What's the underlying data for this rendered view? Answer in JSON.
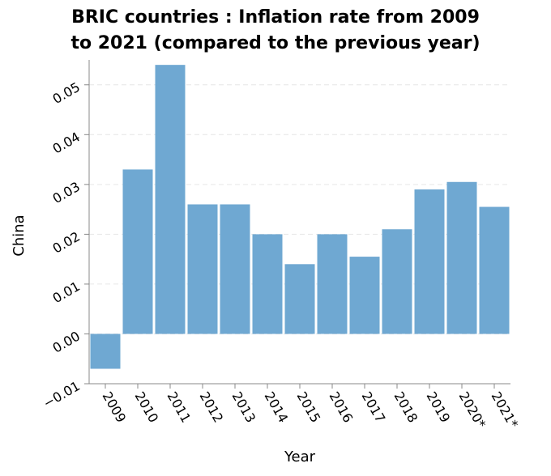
{
  "chart_data": {
    "type": "bar",
    "title_lines": [
      "BRIC countries : Inflation rate from 2009",
      "to 2021 (compared to the previous year)"
    ],
    "xlabel": "Year",
    "ylabel": "China",
    "categories": [
      "2009",
      "2010",
      "2011",
      "2012",
      "2013",
      "2014",
      "2015",
      "2016",
      "2017",
      "2018",
      "2019",
      "2020*",
      "2021*"
    ],
    "values": [
      -0.007,
      0.033,
      0.054,
      0.026,
      0.026,
      0.02,
      0.014,
      0.02,
      0.0155,
      0.021,
      0.029,
      0.0305,
      0.0255
    ],
    "ylim": [
      -0.01,
      0.055
    ],
    "yticks": [
      -0.01,
      0.0,
      0.01,
      0.02,
      0.03,
      0.04,
      0.05
    ],
    "ytick_labels": [
      "−0.01",
      "0.00",
      "0.01",
      "0.02",
      "0.03",
      "0.04",
      "0.05"
    ],
    "grid": true,
    "legend": "none",
    "bar_color": "#6fa8d2"
  }
}
